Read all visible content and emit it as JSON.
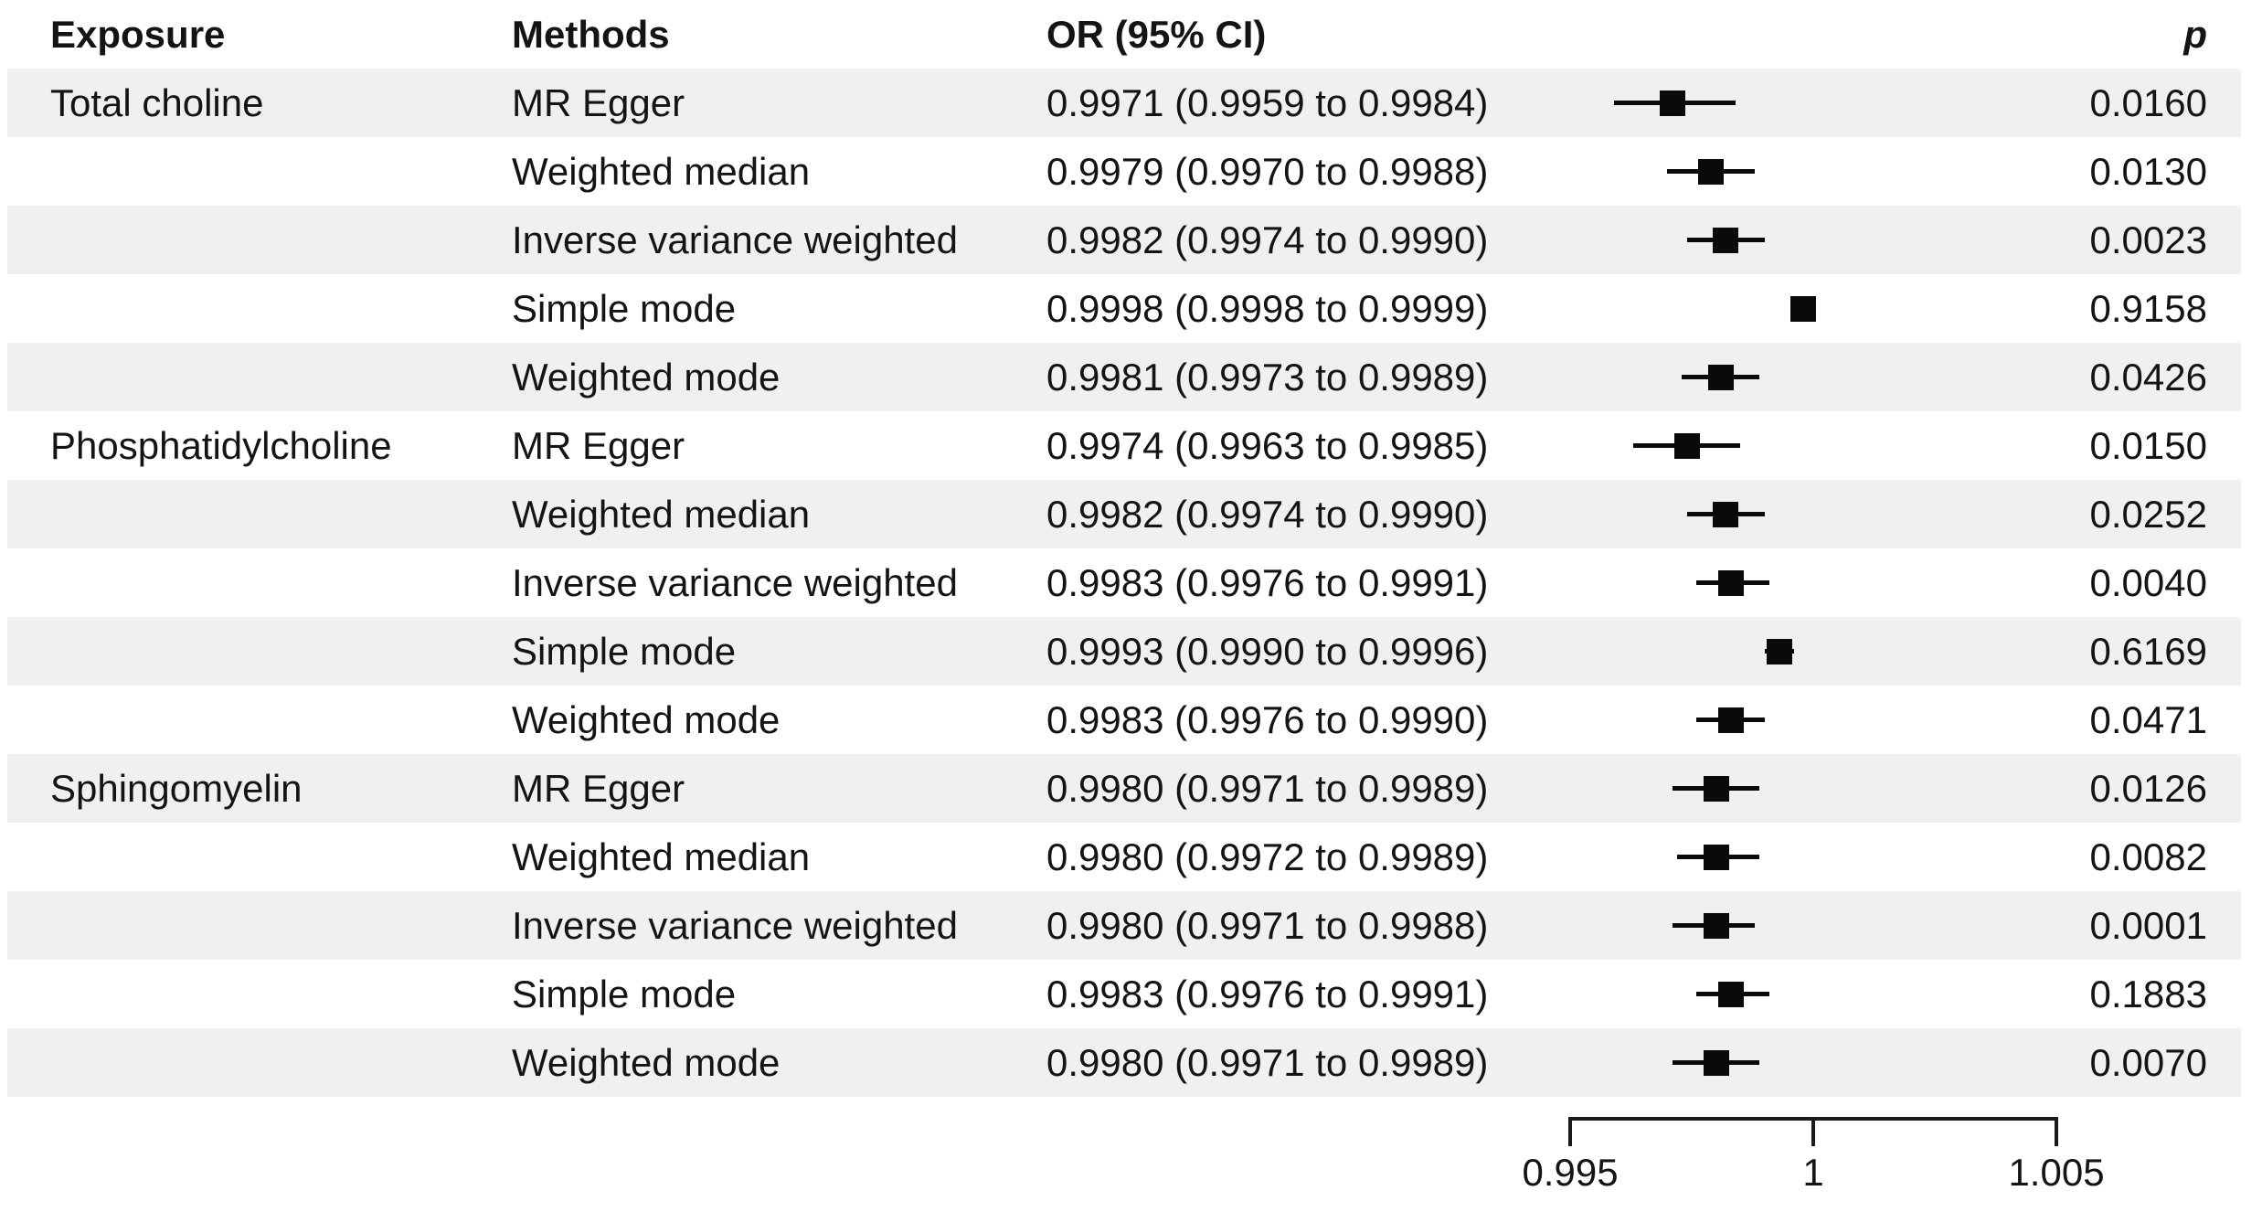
{
  "header": {
    "exposure": "Exposure",
    "methods": "Methods",
    "or_ci": "OR (95% CI)",
    "p": "p"
  },
  "colors": {
    "row_shade": "#eef1ef",
    "marker": "#0a0a0a",
    "text": "#141414"
  },
  "axis": {
    "min": 0.995,
    "max": 1.005,
    "ticks": [
      {
        "label": "0.995",
        "value": 0.995
      },
      {
        "label": "1",
        "value": 1
      },
      {
        "label": "1.005",
        "value": 1.005
      }
    ]
  },
  "rows": [
    {
      "exposure": "Total choline",
      "method": "MR Egger",
      "or_ci": "0.9971 (0.9959 to 0.9984)",
      "or": 0.9971,
      "lo": 0.9959,
      "hi": 0.9984,
      "p": "0.0160",
      "shaded": true
    },
    {
      "exposure": "",
      "method": "Weighted median",
      "or_ci": "0.9979 (0.9970 to 0.9988)",
      "or": 0.9979,
      "lo": 0.997,
      "hi": 0.9988,
      "p": "0.0130",
      "shaded": false
    },
    {
      "exposure": "",
      "method": "Inverse variance weighted",
      "or_ci": "0.9982 (0.9974 to 0.9990)",
      "or": 0.9982,
      "lo": 0.9974,
      "hi": 0.999,
      "p": "0.0023",
      "shaded": true
    },
    {
      "exposure": "",
      "method": "Simple mode",
      "or_ci": "0.9998 (0.9998 to 0.9999)",
      "or": 0.9998,
      "lo": 0.9998,
      "hi": 0.9999,
      "p": "0.9158",
      "shaded": false
    },
    {
      "exposure": "",
      "method": "Weighted mode",
      "or_ci": "0.9981 (0.9973 to 0.9989)",
      "or": 0.9981,
      "lo": 0.9973,
      "hi": 0.9989,
      "p": "0.0426",
      "shaded": true
    },
    {
      "exposure": "Phosphatidylcholine",
      "method": "MR Egger",
      "or_ci": "0.9974 (0.9963 to 0.9985)",
      "or": 0.9974,
      "lo": 0.9963,
      "hi": 0.9985,
      "p": "0.0150",
      "shaded": false
    },
    {
      "exposure": "",
      "method": "Weighted median",
      "or_ci": "0.9982 (0.9974 to 0.9990)",
      "or": 0.9982,
      "lo": 0.9974,
      "hi": 0.999,
      "p": "0.0252",
      "shaded": true
    },
    {
      "exposure": "",
      "method": "Inverse variance weighted",
      "or_ci": "0.9983 (0.9976 to 0.9991)",
      "or": 0.9983,
      "lo": 0.9976,
      "hi": 0.9991,
      "p": "0.0040",
      "shaded": false
    },
    {
      "exposure": "",
      "method": "Simple mode",
      "or_ci": "0.9993 (0.9990 to 0.9996)",
      "or": 0.9993,
      "lo": 0.999,
      "hi": 0.9996,
      "p": "0.6169",
      "shaded": true
    },
    {
      "exposure": "",
      "method": "Weighted mode",
      "or_ci": "0.9983 (0.9976 to 0.9990)",
      "or": 0.9983,
      "lo": 0.9976,
      "hi": 0.999,
      "p": "0.0471",
      "shaded": false
    },
    {
      "exposure": "Sphingomyelin",
      "method": "MR Egger",
      "or_ci": "0.9980 (0.9971 to 0.9989)",
      "or": 0.998,
      "lo": 0.9971,
      "hi": 0.9989,
      "p": "0.0126",
      "shaded": true
    },
    {
      "exposure": "",
      "method": "Weighted median",
      "or_ci": "0.9980 (0.9972 to 0.9989)",
      "or": 0.998,
      "lo": 0.9972,
      "hi": 0.9989,
      "p": "0.0082",
      "shaded": false
    },
    {
      "exposure": "",
      "method": "Inverse variance weighted",
      "or_ci": "0.9980 (0.9971 to 0.9988)",
      "or": 0.998,
      "lo": 0.9971,
      "hi": 0.9988,
      "p": "0.0001",
      "shaded": true
    },
    {
      "exposure": "",
      "method": "Simple mode",
      "or_ci": "0.9983 (0.9976 to 0.9991)",
      "or": 0.9983,
      "lo": 0.9976,
      "hi": 0.9991,
      "p": "0.1883",
      "shaded": false
    },
    {
      "exposure": "",
      "method": "Weighted mode",
      "or_ci": "0.9980 (0.9971 to 0.9989)",
      "or": 0.998,
      "lo": 0.9971,
      "hi": 0.9989,
      "p": "0.0070",
      "shaded": true
    }
  ],
  "chart_data": {
    "type": "forest",
    "title": "",
    "xlabel": "OR (95% CI)",
    "xlim": [
      0.995,
      1.005
    ],
    "x_ticks": [
      0.995,
      1,
      1.005
    ],
    "grid": false,
    "legend_position": "none",
    "series": [
      {
        "name": "Total choline",
        "points": [
          {
            "method": "MR Egger",
            "or": 0.9971,
            "ci": [
              0.9959,
              0.9984
            ],
            "p": 0.016
          },
          {
            "method": "Weighted median",
            "or": 0.9979,
            "ci": [
              0.997,
              0.9988
            ],
            "p": 0.013
          },
          {
            "method": "Inverse variance weighted",
            "or": 0.9982,
            "ci": [
              0.9974,
              0.999
            ],
            "p": 0.0023
          },
          {
            "method": "Simple mode",
            "or": 0.9998,
            "ci": [
              0.9998,
              0.9999
            ],
            "p": 0.9158
          },
          {
            "method": "Weighted mode",
            "or": 0.9981,
            "ci": [
              0.9973,
              0.9989
            ],
            "p": 0.0426
          }
        ]
      },
      {
        "name": "Phosphatidylcholine",
        "points": [
          {
            "method": "MR Egger",
            "or": 0.9974,
            "ci": [
              0.9963,
              0.9985
            ],
            "p": 0.015
          },
          {
            "method": "Weighted median",
            "or": 0.9982,
            "ci": [
              0.9974,
              0.999
            ],
            "p": 0.0252
          },
          {
            "method": "Inverse variance weighted",
            "or": 0.9983,
            "ci": [
              0.9976,
              0.9991
            ],
            "p": 0.004
          },
          {
            "method": "Simple mode",
            "or": 0.9993,
            "ci": [
              0.999,
              0.9996
            ],
            "p": 0.6169
          },
          {
            "method": "Weighted mode",
            "or": 0.9983,
            "ci": [
              0.9976,
              0.999
            ],
            "p": 0.0471
          }
        ]
      },
      {
        "name": "Sphingomyelin",
        "points": [
          {
            "method": "MR Egger",
            "or": 0.998,
            "ci": [
              0.9971,
              0.9989
            ],
            "p": 0.0126
          },
          {
            "method": "Weighted median",
            "or": 0.998,
            "ci": [
              0.9972,
              0.9989
            ],
            "p": 0.0082
          },
          {
            "method": "Inverse variance weighted",
            "or": 0.998,
            "ci": [
              0.9971,
              0.9988
            ],
            "p": 0.0001
          },
          {
            "method": "Simple mode",
            "or": 0.9983,
            "ci": [
              0.9976,
              0.9991
            ],
            "p": 0.1883
          },
          {
            "method": "Weighted mode",
            "or": 0.998,
            "ci": [
              0.9971,
              0.9989
            ],
            "p": 0.007
          }
        ]
      }
    ]
  }
}
